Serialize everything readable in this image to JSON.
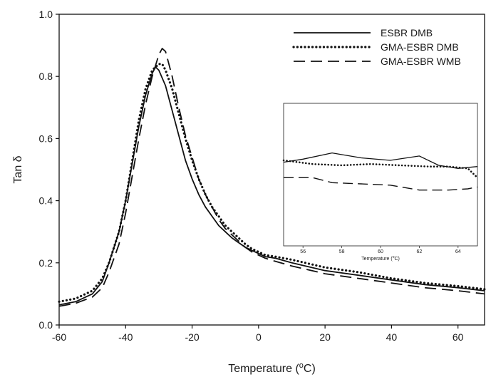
{
  "chart_data": {
    "type": "line",
    "xlabel": "Temperature (",
    "xlabel_unit": "C)",
    "xlabel_degree": "o",
    "ylabel": "Tan δ",
    "xlim": [
      -60,
      68
    ],
    "ylim": [
      0.0,
      1.0
    ],
    "xticks": [
      {
        "value": -60,
        "label": "-60"
      },
      {
        "value": -40,
        "label": "-40"
      },
      {
        "value": -20,
        "label": "-20"
      },
      {
        "value": 0,
        "label": "0"
      },
      {
        "value": 20,
        "label": "20"
      },
      {
        "value": 40,
        "label": "40"
      },
      {
        "value": 60,
        "label": "60"
      }
    ],
    "yticks": [
      {
        "value": 0.0,
        "label": "0.0"
      },
      {
        "value": 0.2,
        "label": "0.2"
      },
      {
        "value": 0.4,
        "label": "0.4"
      },
      {
        "value": 0.6,
        "label": "0.6"
      },
      {
        "value": 0.8,
        "label": "0.8"
      },
      {
        "value": 1.0,
        "label": "1.0"
      }
    ],
    "grid": false,
    "legend_position": "top-right",
    "series": [
      {
        "name": "ESBR DMB",
        "style": "solid",
        "color": "#111111",
        "points": [
          [
            -60,
            0.065
          ],
          [
            -55,
            0.075
          ],
          [
            -50,
            0.1
          ],
          [
            -47,
            0.14
          ],
          [
            -45,
            0.2
          ],
          [
            -42,
            0.3
          ],
          [
            -40,
            0.4
          ],
          [
            -38,
            0.52
          ],
          [
            -36,
            0.64
          ],
          [
            -34,
            0.74
          ],
          [
            -32,
            0.81
          ],
          [
            -31,
            0.83
          ],
          [
            -30,
            0.82
          ],
          [
            -28,
            0.77
          ],
          [
            -26,
            0.69
          ],
          [
            -24,
            0.61
          ],
          [
            -22,
            0.53
          ],
          [
            -20,
            0.47
          ],
          [
            -18,
            0.42
          ],
          [
            -16,
            0.38
          ],
          [
            -14,
            0.35
          ],
          [
            -12,
            0.32
          ],
          [
            -10,
            0.3
          ],
          [
            -8,
            0.28
          ],
          [
            -6,
            0.265
          ],
          [
            -4,
            0.25
          ],
          [
            -2,
            0.24
          ],
          [
            0,
            0.23
          ],
          [
            2,
            0.22
          ],
          [
            5,
            0.215
          ],
          [
            10,
            0.2
          ],
          [
            20,
            0.175
          ],
          [
            30,
            0.16
          ],
          [
            40,
            0.145
          ],
          [
            50,
            0.13
          ],
          [
            60,
            0.12
          ],
          [
            68,
            0.11
          ]
        ]
      },
      {
        "name": "GMA-ESBR DMB",
        "style": "dotted",
        "color": "#111111",
        "points": [
          [
            -60,
            0.075
          ],
          [
            -55,
            0.085
          ],
          [
            -50,
            0.11
          ],
          [
            -47,
            0.15
          ],
          [
            -45,
            0.2
          ],
          [
            -42,
            0.3
          ],
          [
            -40,
            0.4
          ],
          [
            -38,
            0.53
          ],
          [
            -36,
            0.66
          ],
          [
            -34,
            0.76
          ],
          [
            -32,
            0.82
          ],
          [
            -30,
            0.84
          ],
          [
            -29,
            0.84
          ],
          [
            -28,
            0.82
          ],
          [
            -26,
            0.76
          ],
          [
            -24,
            0.68
          ],
          [
            -22,
            0.6
          ],
          [
            -20,
            0.53
          ],
          [
            -18,
            0.47
          ],
          [
            -16,
            0.42
          ],
          [
            -14,
            0.38
          ],
          [
            -12,
            0.35
          ],
          [
            -10,
            0.32
          ],
          [
            -8,
            0.3
          ],
          [
            -6,
            0.28
          ],
          [
            -4,
            0.26
          ],
          [
            -2,
            0.245
          ],
          [
            0,
            0.235
          ],
          [
            2,
            0.225
          ],
          [
            5,
            0.22
          ],
          [
            10,
            0.21
          ],
          [
            20,
            0.185
          ],
          [
            30,
            0.17
          ],
          [
            40,
            0.15
          ],
          [
            50,
            0.135
          ],
          [
            60,
            0.125
          ],
          [
            68,
            0.115
          ]
        ]
      },
      {
        "name": "GMA-ESBR WMB",
        "style": "dashed",
        "color": "#111111",
        "points": [
          [
            -60,
            0.06
          ],
          [
            -55,
            0.07
          ],
          [
            -50,
            0.09
          ],
          [
            -47,
            0.12
          ],
          [
            -45,
            0.17
          ],
          [
            -42,
            0.26
          ],
          [
            -40,
            0.36
          ],
          [
            -38,
            0.48
          ],
          [
            -36,
            0.6
          ],
          [
            -34,
            0.71
          ],
          [
            -32,
            0.8
          ],
          [
            -30,
            0.87
          ],
          [
            -29,
            0.89
          ],
          [
            -28,
            0.88
          ],
          [
            -26,
            0.8
          ],
          [
            -24,
            0.7
          ],
          [
            -22,
            0.61
          ],
          [
            -20,
            0.54
          ],
          [
            -18,
            0.47
          ],
          [
            -16,
            0.42
          ],
          [
            -14,
            0.38
          ],
          [
            -12,
            0.34
          ],
          [
            -10,
            0.31
          ],
          [
            -8,
            0.29
          ],
          [
            -6,
            0.27
          ],
          [
            -4,
            0.25
          ],
          [
            -2,
            0.235
          ],
          [
            0,
            0.225
          ],
          [
            2,
            0.215
          ],
          [
            5,
            0.205
          ],
          [
            10,
            0.19
          ],
          [
            20,
            0.165
          ],
          [
            30,
            0.15
          ],
          [
            40,
            0.135
          ],
          [
            50,
            0.12
          ],
          [
            60,
            0.11
          ],
          [
            68,
            0.1
          ]
        ]
      }
    ],
    "inset": {
      "xlabel": "Temperature (",
      "xlabel_unit": "C)",
      "xlabel_degree": "o",
      "xlim": [
        55,
        65
      ],
      "xticks": [
        {
          "value": 56,
          "label": "56"
        },
        {
          "value": 58,
          "label": "58"
        },
        {
          "value": 60,
          "label": "60"
        },
        {
          "value": 62,
          "label": "62"
        },
        {
          "value": 64,
          "label": "64"
        }
      ],
      "series_points": [
        [
          [
            55,
            0.685
          ],
          [
            56,
            0.69
          ],
          [
            57.5,
            0.7
          ],
          [
            59,
            0.692
          ],
          [
            60.5,
            0.688
          ],
          [
            62,
            0.695
          ],
          [
            63,
            0.68
          ],
          [
            64,
            0.675
          ],
          [
            65,
            0.678
          ]
        ],
        [
          [
            55,
            0.688
          ],
          [
            56.5,
            0.682
          ],
          [
            58,
            0.68
          ],
          [
            59.5,
            0.682
          ],
          [
            61,
            0.68
          ],
          [
            62.5,
            0.678
          ],
          [
            63.5,
            0.678
          ],
          [
            64.5,
            0.675
          ],
          [
            65,
            0.66
          ]
        ],
        [
          [
            55,
            0.66
          ],
          [
            56.5,
            0.66
          ],
          [
            57.5,
            0.652
          ],
          [
            59,
            0.65
          ],
          [
            60.5,
            0.648
          ],
          [
            62,
            0.64
          ],
          [
            63.5,
            0.64
          ],
          [
            64.5,
            0.642
          ],
          [
            65,
            0.645
          ]
        ]
      ],
      "ylim": [
        0.55,
        0.78
      ]
    }
  }
}
